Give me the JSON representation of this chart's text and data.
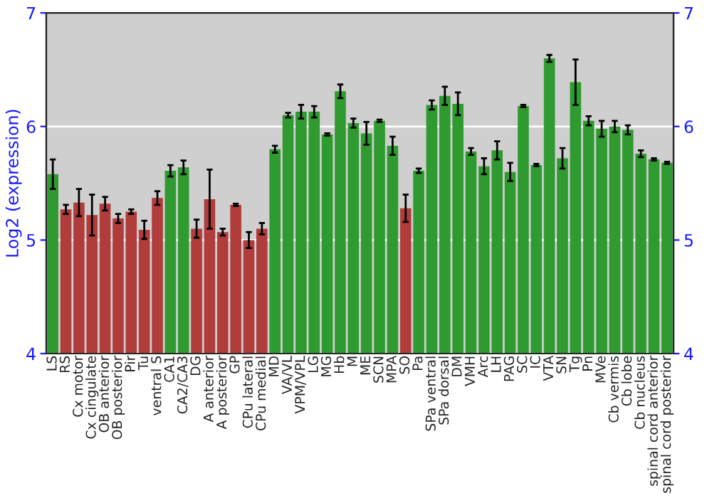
{
  "chart_data": {
    "type": "bar",
    "ylabel": "Log2 (expression)",
    "categories": [
      "LS",
      "RS",
      "Cx motor",
      "Cx cingulate",
      "OB anterior",
      "OB posterior",
      "Pir",
      "Tu",
      "ventral S",
      "CA1",
      "CA2/CA3",
      "DG",
      "A anterior",
      "A posterior",
      "GP",
      "CPu lateral",
      "CPu medial",
      "MD",
      "VA/VL",
      "VPM/VPL",
      "LG",
      "MG",
      "Hb",
      "M",
      "ME",
      "SCN",
      "MPA",
      "SO",
      "Pa",
      "SPa ventral",
      "SPa dorsal",
      "DM",
      "VMH",
      "Arc",
      "LH",
      "PAG",
      "SC",
      "IC",
      "VTA",
      "SN",
      "Tg",
      "Pn",
      "MVe",
      "Cb vermis",
      "Cb lobe",
      "Cb nucleus",
      "spinal cord anterior",
      "spinal cord posterior"
    ],
    "values": [
      5.58,
      5.27,
      5.33,
      5.22,
      5.32,
      5.19,
      5.25,
      5.09,
      5.37,
      5.61,
      5.64,
      5.1,
      5.36,
      5.07,
      5.31,
      5.0,
      5.1,
      5.8,
      6.1,
      6.13,
      6.13,
      5.93,
      6.31,
      6.03,
      5.94,
      6.05,
      5.83,
      5.28,
      5.61,
      6.19,
      6.27,
      6.2,
      5.78,
      5.65,
      5.79,
      5.6,
      6.18,
      5.66,
      6.6,
      5.72,
      6.39,
      6.05,
      5.98,
      6.0,
      5.97,
      5.76,
      5.71,
      5.68
    ],
    "errors": [
      0.13,
      0.04,
      0.12,
      0.18,
      0.06,
      0.04,
      0.02,
      0.08,
      0.06,
      0.05,
      0.06,
      0.08,
      0.26,
      0.03,
      0.01,
      0.07,
      0.05,
      0.03,
      0.02,
      0.06,
      0.05,
      0.01,
      0.06,
      0.04,
      0.1,
      0.01,
      0.08,
      0.12,
      0.02,
      0.04,
      0.08,
      0.1,
      0.03,
      0.07,
      0.08,
      0.08,
      0.01,
      0.01,
      0.03,
      0.09,
      0.2,
      0.04,
      0.07,
      0.05,
      0.04,
      0.03,
      0.01,
      0.01
    ],
    "colors": [
      "#2f9a2f",
      "#b03c3c",
      "#b03c3c",
      "#b03c3c",
      "#b03c3c",
      "#b03c3c",
      "#b03c3c",
      "#b03c3c",
      "#b03c3c",
      "#2f9a2f",
      "#2f9a2f",
      "#b03c3c",
      "#b03c3c",
      "#b03c3c",
      "#b03c3c",
      "#b03c3c",
      "#b03c3c",
      "#2f9a2f",
      "#2f9a2f",
      "#2f9a2f",
      "#2f9a2f",
      "#2f9a2f",
      "#2f9a2f",
      "#2f9a2f",
      "#2f9a2f",
      "#2f9a2f",
      "#2f9a2f",
      "#b03c3c",
      "#2f9a2f",
      "#2f9a2f",
      "#2f9a2f",
      "#2f9a2f",
      "#2f9a2f",
      "#2f9a2f",
      "#2f9a2f",
      "#2f9a2f",
      "#2f9a2f",
      "#2f9a2f",
      "#2f9a2f",
      "#2f9a2f",
      "#2f9a2f",
      "#2f9a2f",
      "#2f9a2f",
      "#2f9a2f",
      "#2f9a2f",
      "#2f9a2f",
      "#2f9a2f",
      "#2f9a2f"
    ],
    "ylim": [
      4,
      7
    ],
    "yticks": [
      4,
      5,
      6,
      7
    ],
    "y2lim": [
      4,
      7
    ],
    "y2ticks": [
      4,
      5,
      6,
      7
    ],
    "grid": "y"
  }
}
